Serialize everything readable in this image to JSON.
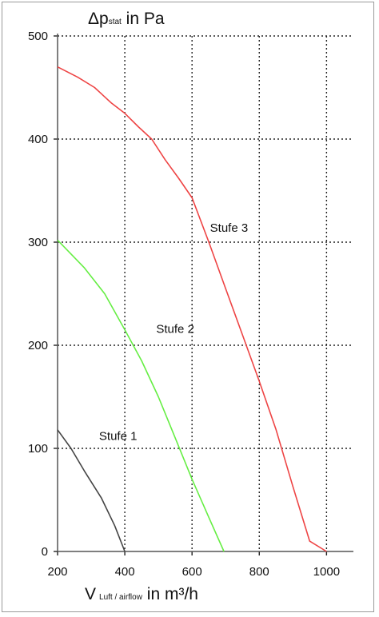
{
  "chart_data": {
    "type": "line",
    "ylabel": {
      "symbol": "Δp",
      "subscript": "stat",
      "unit": " in Pa"
    },
    "xlabel": {
      "symbol": "V",
      "subscript": "Luft / airflow",
      "unit": " in m³/h"
    },
    "xlim": [
      200,
      1080
    ],
    "ylim": [
      0,
      500
    ],
    "x_ticks": [
      "200",
      "400",
      "600",
      "800",
      "1000"
    ],
    "y_ticks": [
      "0",
      "100",
      "200",
      "300",
      "400",
      "500"
    ],
    "grid": true,
    "series": [
      {
        "name": "Stufe 1",
        "color": "#444444",
        "points": [
          [
            200,
            118
          ],
          [
            240,
            100
          ],
          [
            280,
            78
          ],
          [
            330,
            52
          ],
          [
            370,
            25
          ],
          [
            400,
            0
          ]
        ]
      },
      {
        "name": "Stufe 2",
        "color": "#66ee44",
        "points": [
          [
            200,
            302
          ],
          [
            280,
            275
          ],
          [
            340,
            250
          ],
          [
            400,
            215
          ],
          [
            450,
            185
          ],
          [
            500,
            150
          ],
          [
            550,
            110
          ],
          [
            600,
            70
          ],
          [
            650,
            33
          ],
          [
            695,
            0
          ]
        ]
      },
      {
        "name": "Stufe 3",
        "color": "#ee4444",
        "points": [
          [
            200,
            470
          ],
          [
            260,
            460
          ],
          [
            310,
            450
          ],
          [
            360,
            435
          ],
          [
            400,
            425
          ],
          [
            440,
            412
          ],
          [
            480,
            400
          ],
          [
            520,
            380
          ],
          [
            560,
            362
          ],
          [
            600,
            343
          ],
          [
            650,
            300
          ],
          [
            700,
            255
          ],
          [
            750,
            210
          ],
          [
            800,
            165
          ],
          [
            850,
            118
          ],
          [
            900,
            63
          ],
          [
            950,
            10
          ],
          [
            1000,
            0
          ]
        ]
      }
    ],
    "annotations": [
      {
        "text": "Stufe 1",
        "x": 380,
        "y": 108
      },
      {
        "text": "Stufe 2",
        "x": 550,
        "y": 212
      },
      {
        "text": "Stufe 3",
        "x": 710,
        "y": 310
      }
    ]
  }
}
